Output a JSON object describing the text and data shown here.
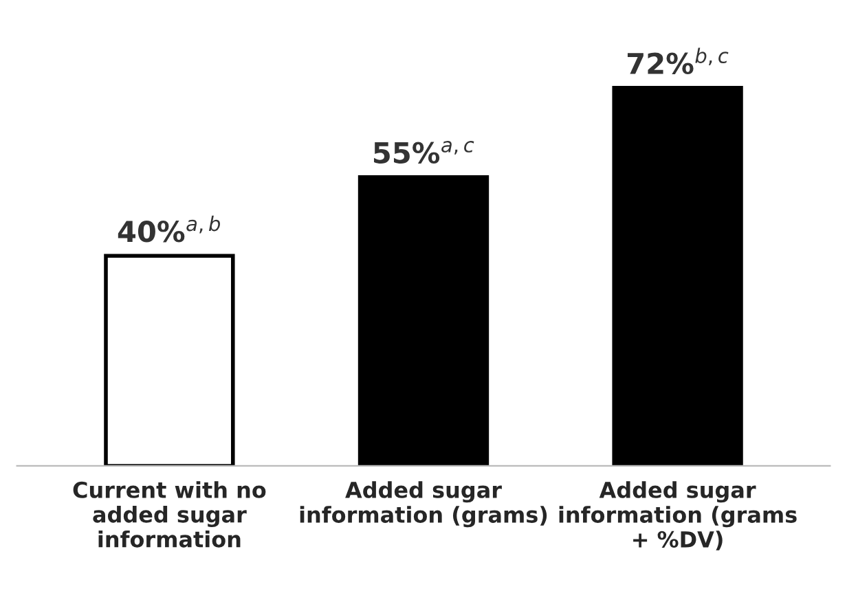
{
  "chart_data": {
    "type": "bar",
    "categories": [
      "Current with no\nadded sugar\ninformation",
      "Added sugar\ninformation (grams)",
      "Added sugar\ninformation (grams\n+ %DV)"
    ],
    "values": [
      40,
      55,
      72
    ],
    "colors": [
      "#ffffff",
      "#000000",
      "#000000"
    ],
    "value_labels": [
      "40%$^{a,b}$",
      "55%$^{a,c}$",
      "72%$^{b,c}$"
    ],
    "tick_labels": "x",
    "grid": false,
    "legend": false
  }
}
